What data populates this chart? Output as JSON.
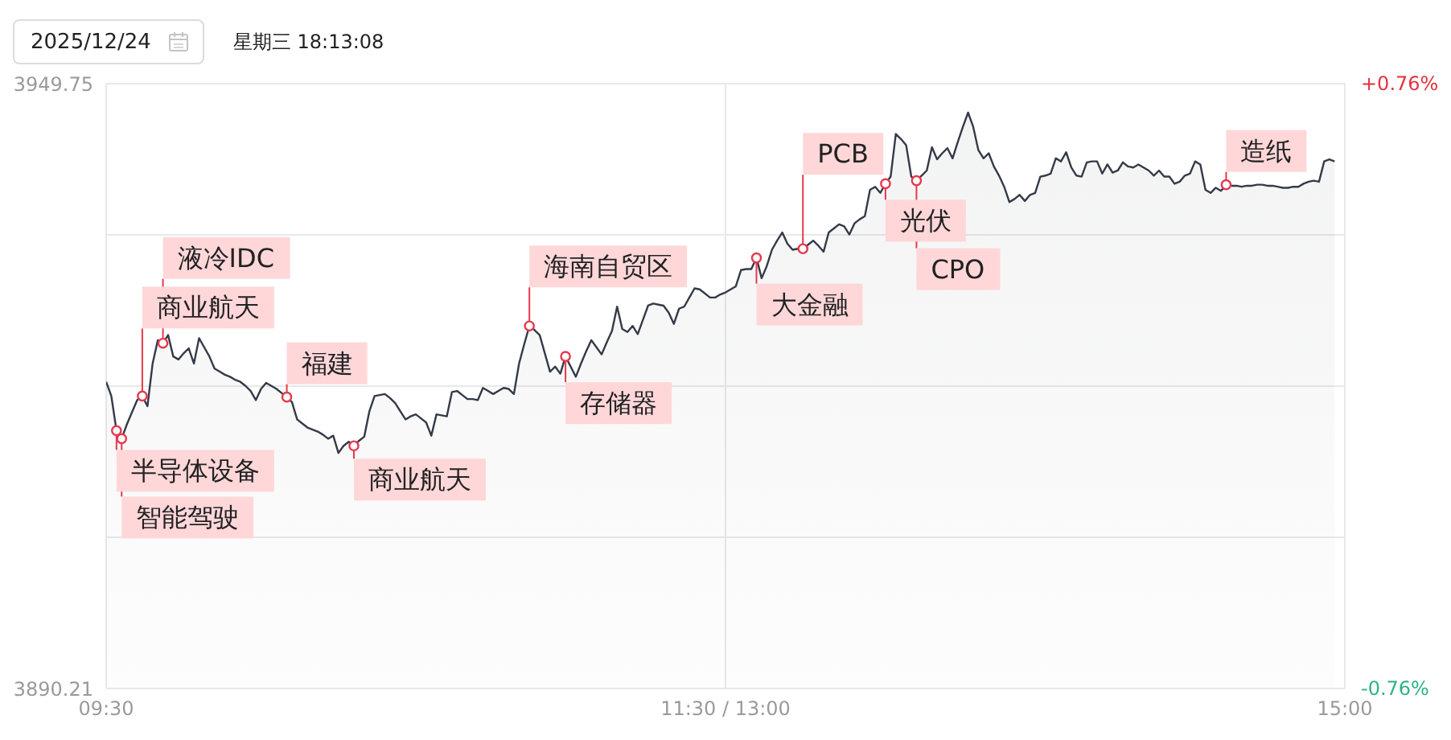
{
  "chart_data": {
    "type": "area",
    "title": "2025/12/24",
    "subtitle": "星期三 18:13:08",
    "categories": [
      "09:30",
      null,
      null,
      null,
      null,
      null,
      null,
      null,
      null,
      null,
      null,
      null,
      null,
      null,
      null,
      null,
      null,
      null,
      null,
      null,
      null,
      null,
      null,
      null,
      null,
      null,
      null,
      null,
      null,
      null,
      null,
      null,
      null,
      null,
      null,
      null,
      null,
      null,
      null,
      null,
      null,
      null,
      null,
      null,
      null,
      null,
      null,
      null,
      null,
      null,
      null,
      null,
      null,
      null,
      null,
      null,
      null,
      null,
      null,
      null,
      null,
      null,
      null,
      null,
      null,
      null,
      null,
      null,
      null,
      null,
      null,
      null,
      null,
      null,
      null,
      null,
      null,
      null,
      null,
      null,
      null,
      null,
      null,
      null,
      null,
      null,
      null,
      null,
      null,
      null,
      null,
      null,
      null,
      null,
      null,
      null,
      null,
      null,
      null,
      null,
      null,
      null,
      null,
      null,
      null,
      null,
      null,
      null,
      null,
      null,
      null,
      null,
      null,
      null,
      null,
      null,
      null,
      null,
      null,
      null,
      "11:30 / 13:00",
      null,
      null,
      null,
      null,
      null,
      null,
      null,
      null,
      null,
      null,
      null,
      null,
      null,
      null,
      null,
      null,
      null,
      null,
      null,
      null,
      null,
      null,
      null,
      null,
      null,
      null,
      null,
      null,
      null,
      null,
      null,
      null,
      null,
      null,
      null,
      null,
      null,
      null,
      null,
      null,
      null,
      null,
      null,
      null,
      null,
      null,
      null,
      null,
      null,
      null,
      null,
      null,
      null,
      null,
      null,
      null,
      null,
      null,
      null,
      null,
      null,
      null,
      null,
      null,
      null,
      null,
      null,
      null,
      null,
      null,
      null,
      null,
      null,
      null,
      null,
      null,
      null,
      null,
      null,
      null,
      null,
      null,
      null,
      null,
      null,
      null,
      null,
      null,
      null,
      null,
      null,
      null,
      null,
      null,
      null,
      null,
      null,
      null,
      null,
      null,
      null,
      null,
      null,
      null,
      null,
      null,
      null,
      null,
      null,
      null,
      null,
      null,
      null,
      null,
      null,
      null,
      null,
      null,
      null,
      "15:00"
    ],
    "series": [
      {
        "color": "#343a48",
        "values": [
          3920.4,
          3919.0,
          3915.6,
          3914.8,
          3916.2,
          3917.4,
          3918.6,
          3919.0,
          3918.0,
          3922.2,
          3924.5,
          3924.2,
          3925.0,
          3922.9,
          3922.6,
          3923.2,
          3923.7,
          3922.2,
          3924.7,
          3923.8,
          3922.9,
          3921.7,
          3921.4,
          3921.1,
          3920.9,
          3920.6,
          3920.4,
          3920.0,
          3919.5,
          3918.6,
          3919.7,
          3920.3,
          3920.0,
          3919.7,
          3919.3,
          3918.9,
          3918.4,
          3916.7,
          3916.3,
          3915.9,
          3915.7,
          3915.5,
          3915.2,
          3914.8,
          3915.1,
          3913.4,
          3914.1,
          3914.5,
          3914.1,
          3914.6,
          3915.0,
          3917.5,
          3919.0,
          3919.1,
          3919.2,
          3918.8,
          3918.3,
          3917.5,
          3916.7,
          3917.0,
          3917.2,
          3916.8,
          3916.4,
          3915.1,
          3917.2,
          3917.1,
          3917.0,
          3919.4,
          3919.5,
          3919.1,
          3918.7,
          3918.7,
          3918.6,
          3919.8,
          3919.5,
          3919.2,
          3919.5,
          3919.8,
          3919.7,
          3919.2,
          3922.2,
          3924.1,
          3925.9,
          3925.5,
          3925.0,
          3923.2,
          3921.4,
          3921.9,
          3921.2,
          3922.9,
          3921.9,
          3920.9,
          3922.2,
          3923.4,
          3924.5,
          3923.8,
          3923.1,
          3924.3,
          3925.4,
          3927.8,
          3925.6,
          3925.3,
          3925.9,
          3925.1,
          3926.5,
          3927.9,
          3928.1,
          3928.0,
          3927.9,
          3927.2,
          3926.1,
          3927.6,
          3927.8,
          3928.7,
          3929.6,
          3929.5,
          3929.1,
          3928.7,
          3928.7,
          3929.0,
          3929.2,
          3929.5,
          3929.8,
          3931.4,
          3931.5,
          3931.5,
          3932.6,
          3930.6,
          3931.8,
          3933.4,
          3934.3,
          3935.1,
          3934.0,
          3933.4,
          3933.5,
          3933.5,
          3933.9,
          3934.3,
          3933.8,
          3933.2,
          3935.1,
          3935.5,
          3935.9,
          3935.7,
          3934.9,
          3936.0,
          3936.4,
          3936.7,
          3939.3,
          3939.6,
          3939.0,
          3939.9,
          3940.6,
          3944.8,
          3944.3,
          3943.7,
          3940.6,
          3940.2,
          3940.7,
          3941.2,
          3943.5,
          3942.3,
          3942.9,
          3943.4,
          3942.4,
          3944.0,
          3945.5,
          3946.9,
          3945.5,
          3943.2,
          3942.4,
          3942.9,
          3941.6,
          3940.7,
          3939.6,
          3938.1,
          3938.4,
          3938.8,
          3938.2,
          3938.8,
          3939.0,
          3940.6,
          3940.7,
          3940.9,
          3942.4,
          3942.1,
          3943.0,
          3941.5,
          3940.7,
          3940.6,
          3942.0,
          3942.1,
          3942.1,
          3940.9,
          3941.8,
          3941.0,
          3941.2,
          3942.0,
          3941.6,
          3941.5,
          3941.8,
          3941.5,
          3941.2,
          3940.7,
          3941.2,
          3940.6,
          3940.6,
          3939.9,
          3940.1,
          3940.7,
          3940.9,
          3942.1,
          3941.8,
          3939.3,
          3939.0,
          3939.5,
          3939.2,
          3939.8,
          3939.7,
          3939.7,
          3939.6,
          3939.7,
          3939.7,
          3939.8,
          3939.8,
          3939.7,
          3939.7,
          3939.6,
          3939.5,
          3939.5,
          3939.6,
          3939.6,
          3939.9,
          3940.1,
          3940.2,
          3940.1,
          3942.1,
          3942.3,
          3942.1,
          null,
          null
        ]
      },
      {
        "type": "scatter",
        "color": "#e5394d",
        "values": [
          null,
          null,
          3915.6,
          3914.8,
          null,
          null,
          null,
          3919.0,
          null,
          null,
          null,
          3924.2,
          null,
          null,
          null,
          null,
          null,
          null,
          null,
          null,
          null,
          null,
          null,
          null,
          null,
          null,
          null,
          null,
          null,
          null,
          null,
          null,
          null,
          null,
          null,
          3918.9,
          null,
          null,
          null,
          null,
          null,
          null,
          null,
          null,
          null,
          null,
          null,
          null,
          3914.1,
          null,
          null,
          null,
          null,
          null,
          null,
          null,
          null,
          null,
          null,
          null,
          null,
          null,
          null,
          null,
          null,
          null,
          null,
          null,
          null,
          null,
          null,
          null,
          null,
          null,
          null,
          null,
          null,
          null,
          null,
          null,
          null,
          null,
          3925.9,
          null,
          null,
          null,
          null,
          null,
          null,
          3922.9,
          null,
          null,
          null,
          null,
          null,
          null,
          null,
          null,
          null,
          null,
          null,
          null,
          null,
          null,
          null,
          null,
          null,
          null,
          null,
          null,
          null,
          null,
          null,
          null,
          null,
          null,
          null,
          null,
          null,
          null,
          null,
          null,
          null,
          null,
          null,
          null,
          3932.6,
          null,
          null,
          null,
          null,
          null,
          null,
          null,
          null,
          3933.5,
          null,
          null,
          null,
          null,
          null,
          null,
          null,
          null,
          null,
          null,
          null,
          null,
          null,
          null,
          null,
          3939.9,
          null,
          null,
          null,
          null,
          null,
          3940.2,
          null,
          null,
          null,
          null,
          null,
          null,
          null,
          null,
          null,
          null,
          null,
          null,
          null,
          null,
          null,
          null,
          null,
          null,
          null,
          null,
          null,
          null,
          null,
          null,
          null,
          null,
          null,
          null,
          null,
          null,
          null,
          null,
          null,
          null,
          null,
          null,
          null,
          null,
          null,
          null,
          null,
          null,
          null,
          null,
          null,
          null,
          null,
          null,
          null,
          null,
          null,
          null,
          null,
          null,
          null,
          null,
          null,
          null,
          null,
          3939.8,
          null,
          null,
          null,
          null,
          null,
          null,
          null,
          null,
          null,
          null,
          null,
          null,
          null,
          null,
          null,
          null,
          null,
          null,
          null,
          null,
          null,
          null,
          null
        ],
        "value_labels": [
          null,
          null,
          "半导体设备",
          "智能驾驶",
          null,
          null,
          null,
          "商业航天",
          null,
          null,
          null,
          "液冷IDC",
          null,
          null,
          null,
          null,
          null,
          null,
          null,
          null,
          null,
          null,
          null,
          null,
          null,
          null,
          null,
          null,
          null,
          null,
          null,
          null,
          null,
          null,
          null,
          "福建",
          null,
          null,
          null,
          null,
          null,
          null,
          null,
          null,
          null,
          null,
          null,
          null,
          "商业航天",
          null,
          null,
          null,
          null,
          null,
          null,
          null,
          null,
          null,
          null,
          null,
          null,
          null,
          null,
          null,
          null,
          null,
          null,
          null,
          null,
          null,
          null,
          null,
          null,
          null,
          null,
          null,
          null,
          null,
          null,
          null,
          null,
          null,
          "海南自贸区",
          null,
          null,
          null,
          null,
          null,
          null,
          "存储器",
          null,
          null,
          null,
          null,
          null,
          null,
          null,
          null,
          null,
          null,
          null,
          null,
          null,
          null,
          null,
          null,
          null,
          null,
          null,
          null,
          null,
          null,
          null,
          null,
          null,
          null,
          null,
          null,
          null,
          null,
          null,
          null,
          null,
          null,
          null,
          null,
          "大金融",
          null,
          null,
          null,
          null,
          null,
          null,
          null,
          null,
          "PCB",
          null,
          null,
          null,
          null,
          null,
          null,
          null,
          null,
          null,
          null,
          null,
          null,
          null,
          null,
          null,
          "光伏",
          null,
          null,
          null,
          null,
          null,
          "CPO",
          null,
          null,
          null,
          null,
          null,
          null,
          null,
          null,
          null,
          null,
          null,
          null,
          null,
          null,
          null,
          null,
          null,
          null,
          null,
          null,
          null,
          null,
          null,
          null,
          null,
          null,
          null,
          null,
          null,
          null,
          null,
          null,
          null,
          null,
          null,
          null,
          null,
          null,
          null,
          null,
          null,
          null,
          null,
          null,
          null,
          null,
          null,
          null,
          null,
          null,
          null,
          null,
          null,
          null,
          null,
          null,
          null,
          null,
          null,
          "造纸",
          null,
          null,
          null,
          null,
          null,
          null,
          null,
          null,
          null,
          null,
          null,
          null,
          null,
          null,
          null,
          null,
          null,
          null,
          null,
          null,
          null,
          null,
          null
        ]
      }
    ],
    "ylim": [
      3890.21,
      3949.75
    ],
    "yticks": [
      3890.21,
      {
        "value": 3905.1,
        "label": null
      },
      {
        "value": 3919.98,
        "label": null
      },
      {
        "value": 3934.87,
        "label": null
      },
      3949.75
    ],
    "y2lim": [
      -0.76,
      0.76
    ],
    "y2ticks": [
      {
        "value": -0.76,
        "label": "-0.76%"
      },
      {
        "value": 0.76,
        "label": "+0.76%"
      }
    ],
    "grid": true
  }
}
